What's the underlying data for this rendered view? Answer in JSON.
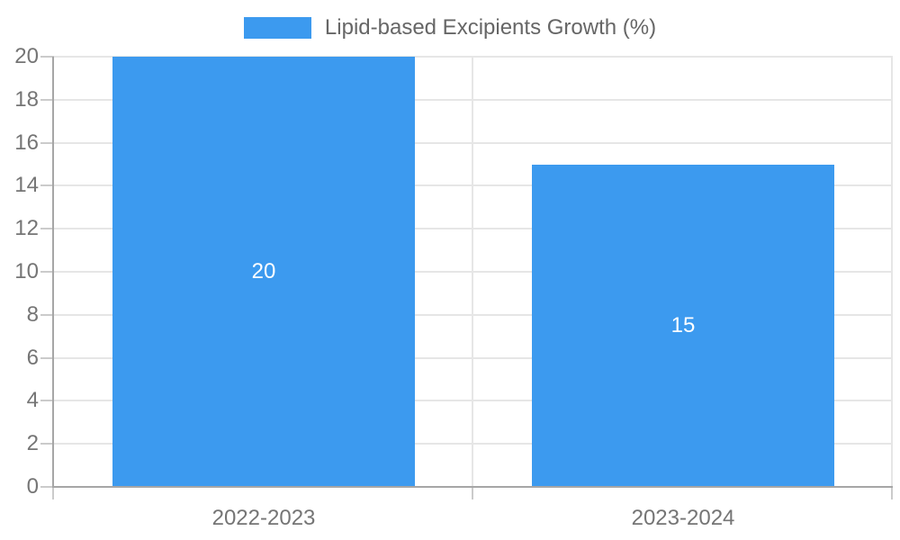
{
  "legend": {
    "label": "Lipid-based Excipients Growth (%)"
  },
  "chart_data": {
    "type": "bar",
    "title": "",
    "xlabel": "",
    "ylabel": "",
    "categories": [
      "2022-2023",
      "2023-2024"
    ],
    "series": [
      {
        "name": "Lipid-based Excipients Growth (%)",
        "values": [
          20,
          15
        ]
      }
    ],
    "data_labels": [
      "20",
      "15"
    ],
    "ylim": [
      0,
      20
    ],
    "yticks": [
      0,
      2,
      4,
      6,
      8,
      10,
      12,
      14,
      16,
      18,
      20
    ],
    "grid": true,
    "legend_position": "top-center",
    "colors": {
      "bar": "#3C9AEF",
      "axis_line": "#A6A6A6",
      "gridline": "#E6E6E6",
      "tick_mark": "#CBCBCB",
      "axis_label": "#757575",
      "legend_text": "#666666",
      "data_label": "#FFFFFF",
      "background": "#FFFFFF"
    }
  }
}
